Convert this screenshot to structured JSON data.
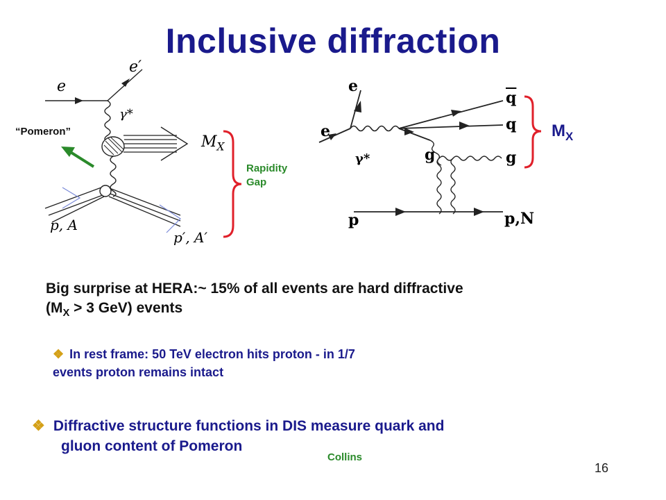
{
  "title": "Inclusive diffraction",
  "left_diagram": {
    "label_e": "e",
    "label_e_prime": "e′",
    "label_gamma": "γ*",
    "label_mx": "M",
    "label_mx_sub": "X",
    "label_pA": "p, A",
    "label_pA_prime": "p′, A′",
    "pomeron_label": "“Pomeron”",
    "rapidity_gap_line1": "Rapidity",
    "rapidity_gap_line2": "Gap"
  },
  "right_diagram": {
    "label_e_top": "e",
    "label_e": "e",
    "label_gamma": "γ*",
    "label_qbar": "q",
    "label_q": "q",
    "label_g_mid": "g",
    "label_g_right": "g",
    "label_p": "p",
    "label_pN": "p,N",
    "mx_label": "M",
    "mx_sub": "X"
  },
  "main_text": {
    "line1": "Big surprise at HERA:~ 15% of all events are hard diffractive",
    "line2_pre": "(M",
    "line2_sub": "X",
    "line2_post": " > 3 GeV) events"
  },
  "bullet1": {
    "line1": "In rest frame: 50 TeV electron hits proton - in 1/7",
    "line2": "events proton remains intact"
  },
  "bullet2": {
    "line1": "Diffractive structure functions in DIS measure quark and",
    "line2": "gluon content of Pomeron"
  },
  "collins": "Collins",
  "page_number": "16",
  "colors": {
    "title": "#1a1a8c",
    "bracket": "#e0202a",
    "arrow": "#2a8a2a",
    "bullet": "#d4a017"
  }
}
